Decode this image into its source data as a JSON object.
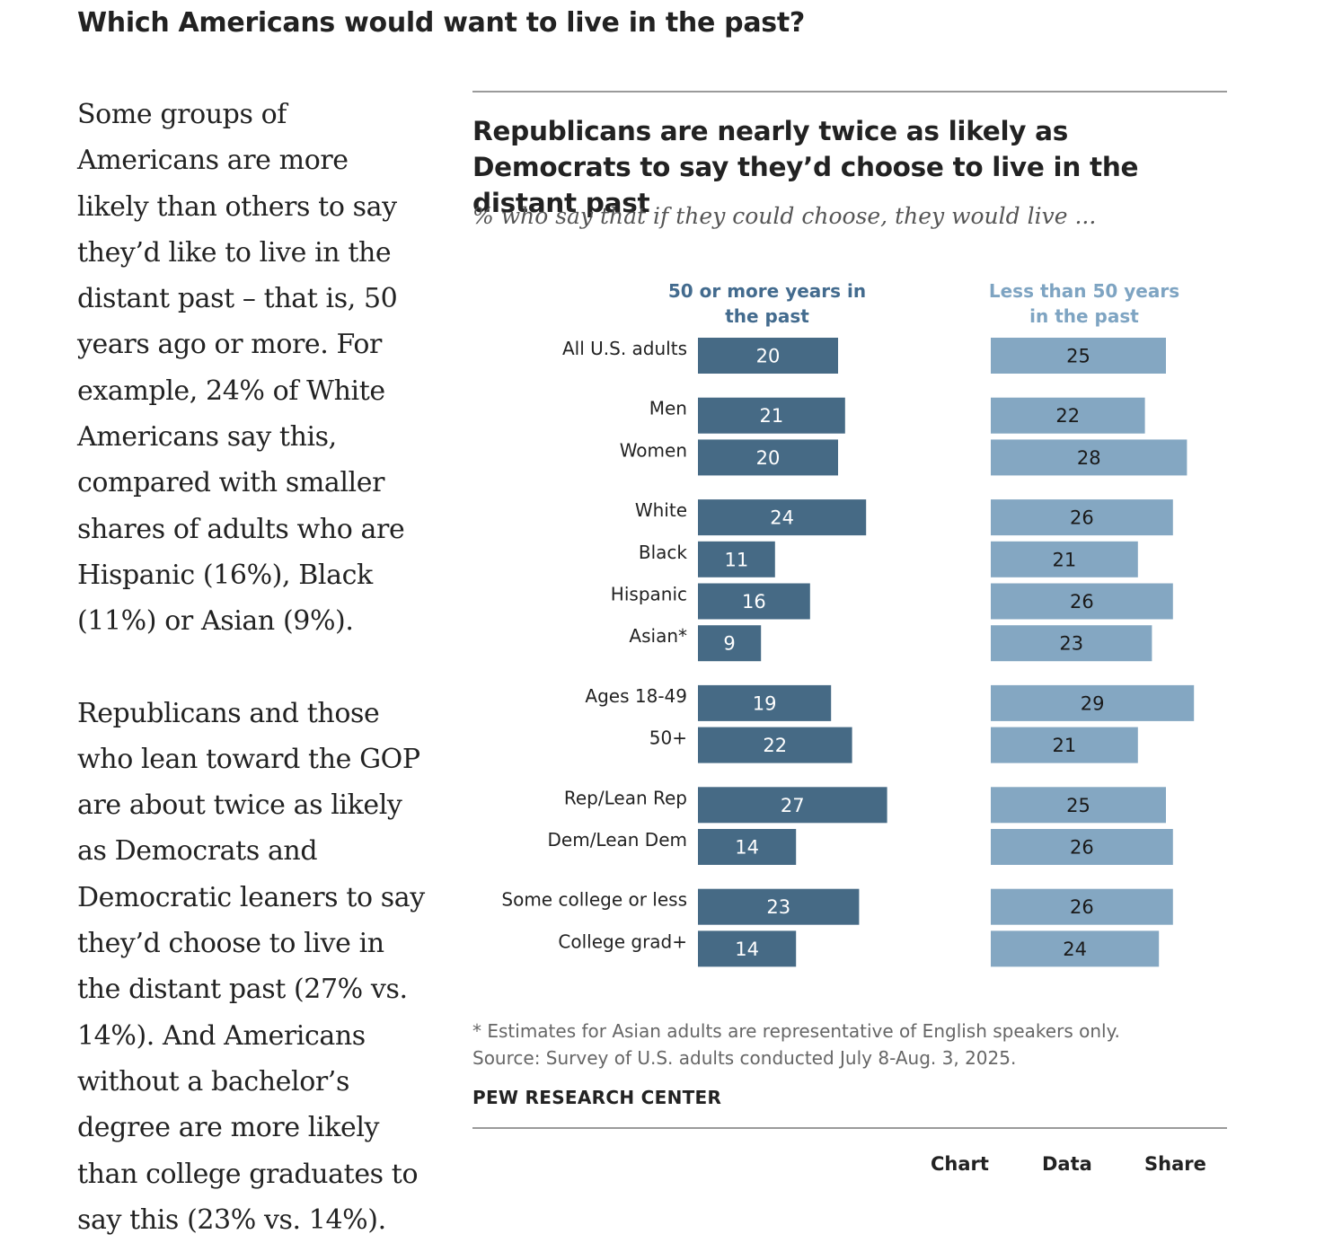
{
  "page": {
    "heading": "Which Americans would want to live in the past?"
  },
  "article": {
    "paragraphs": [
      "Some groups of Americans are more likely than others to say they’d like to live in the distant past – that is, 50 years ago or more. For example, 24% of White Americans say this, compared with smaller shares of adults who are Hispanic (16%), Black (11%) or Asian (9%).",
      "Republicans and those who lean toward the GOP are about twice as likely as Democrats and Democratic leaners to say they’d choose to live in the distant past (27% vs. 14%). And Americans without a bachelor’s degree are more likely than college graduates to say this (23% vs. 14%)."
    ]
  },
  "chart_data": {
    "type": "bar",
    "orientation": "horizontal",
    "title": "Republicans are nearly twice as likely as Democrats to say they’d choose to live in the distant past",
    "subtitle": "% who say that if they could choose, they would live ...",
    "categories": [
      "All U.S. adults",
      "Men",
      "Women",
      "White",
      "Black",
      "Hispanic",
      "Asian*",
      "Ages 18-49",
      "50+",
      "Rep/Lean Rep",
      "Dem/Lean Dem",
      "Some college or less",
      "College grad+"
    ],
    "groups": [
      [
        "All U.S. adults"
      ],
      [
        "Men",
        "Women"
      ],
      [
        "White",
        "Black",
        "Hispanic",
        "Asian*"
      ],
      [
        "Ages 18-49",
        "50+"
      ],
      [
        "Rep/Lean Rep",
        "Dem/Lean Dem"
      ],
      [
        "Some college or less",
        "College grad+"
      ]
    ],
    "series": [
      {
        "name": "50 or more years in the past",
        "header_lines": [
          "50 or more years in",
          "the past"
        ],
        "color": "#466a85",
        "label_color": "#436b8e",
        "values": [
          20,
          21,
          20,
          24,
          11,
          16,
          9,
          19,
          22,
          27,
          14,
          23,
          14
        ]
      },
      {
        "name": "Less than 50 years in the past",
        "header_lines": [
          "Less than 50 years",
          "in the past"
        ],
        "color": "#84a7c2",
        "label_color": "#7ea4c2",
        "values": [
          25,
          22,
          28,
          26,
          21,
          26,
          23,
          29,
          21,
          25,
          26,
          26,
          24
        ]
      }
    ],
    "xlim": [
      0,
      30
    ]
  },
  "footnote": {
    "asterisk_note": "* Estimates for Asian adults are representative of English speakers only.",
    "source": "Source: Survey of U.S. adults conducted July 8-Aug. 3, 2025."
  },
  "brand": "PEW RESEARCH CENTER",
  "tabs": {
    "chart": "Chart",
    "data": "Data",
    "share": "Share"
  }
}
